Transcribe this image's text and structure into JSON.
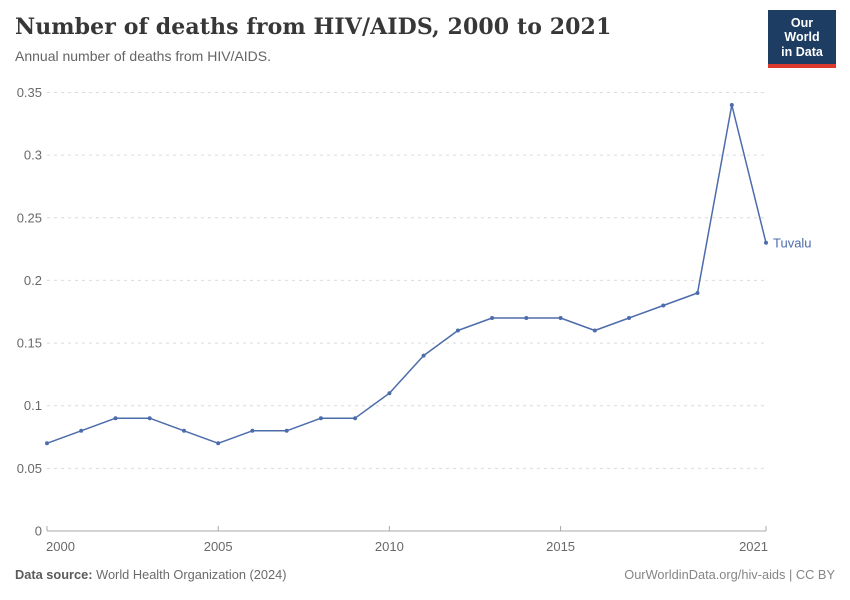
{
  "header": {
    "title": "Number of deaths from HIV/AIDS, 2000 to 2021",
    "subtitle": "Annual number of deaths from HIV/AIDS.",
    "logo": {
      "line1": "Our World",
      "line2": "in Data",
      "bg_color": "#1d3d63",
      "accent_color": "#dc3a2c"
    }
  },
  "chart_data": {
    "type": "line",
    "title": "Number of deaths from HIV/AIDS, 2000 to 2021",
    "subtitle": "Annual number of deaths from HIV/AIDS.",
    "x": [
      2000,
      2001,
      2002,
      2003,
      2004,
      2005,
      2006,
      2007,
      2008,
      2009,
      2010,
      2011,
      2012,
      2013,
      2014,
      2015,
      2016,
      2017,
      2018,
      2019,
      2020,
      2021
    ],
    "series": [
      {
        "name": "Tuvalu",
        "color": "#4d6cab",
        "values": [
          0.07,
          0.08,
          0.09,
          0.09,
          0.08,
          0.07,
          0.08,
          0.08,
          0.09,
          0.09,
          0.11,
          0.14,
          0.16,
          0.17,
          0.17,
          0.17,
          0.16,
          0.17,
          0.18,
          0.19,
          0.34,
          0.23
        ]
      }
    ],
    "xlim": [
      2000,
      2021
    ],
    "ylim": [
      0,
      0.35
    ],
    "xticks": [
      2000,
      2005,
      2010,
      2015,
      2021
    ],
    "yticks": [
      {
        "value": 0,
        "label": "0"
      },
      {
        "value": 0.05,
        "label": "0.05"
      },
      {
        "value": 0.1,
        "label": "0.1"
      },
      {
        "value": 0.15,
        "label": "0.15"
      },
      {
        "value": 0.2,
        "label": "0.2"
      },
      {
        "value": 0.25,
        "label": "0.25"
      },
      {
        "value": 0.3,
        "label": "0.3"
      },
      {
        "value": 0.35,
        "label": "0.35"
      }
    ],
    "grid": "horizontal-dashed",
    "legend_position": "end-of-line-label",
    "colors": {
      "gridline": "#dcdcdc",
      "axis": "#a8a8a8",
      "tick_label": "#696969"
    }
  },
  "footer": {
    "source_label": "Data source:",
    "source_value": "World Health Organization (2024)",
    "credit": "OurWorldinData.org/hiv-aids | CC BY"
  }
}
